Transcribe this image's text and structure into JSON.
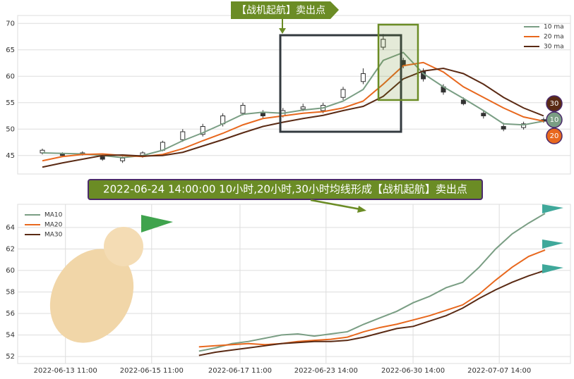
{
  "chart_data": [
    {
      "type": "candlestick",
      "annotation": "【战机起航】卖出点",
      "ylim": [
        41.5,
        71.5
      ],
      "yticks": [
        45,
        50,
        55,
        60,
        65,
        70
      ],
      "grid": true,
      "legend": "upper right",
      "candles": {
        "open": [
          45.5,
          45.3,
          45.2,
          44.8,
          44.0,
          44.8,
          46.0,
          48.0,
          49.0,
          51.0,
          53.0,
          53.2,
          52.5,
          53.8,
          53.5,
          56.0,
          59.0,
          65.5,
          63.0,
          61.0,
          58.0,
          55.5,
          53.0,
          50.5,
          50.3,
          51.8
        ],
        "close": [
          46.0,
          45.0,
          45.5,
          44.3,
          44.5,
          45.5,
          47.5,
          49.5,
          50.5,
          52.5,
          54.5,
          52.5,
          53.5,
          54.2,
          54.5,
          57.5,
          60.5,
          67.0,
          62.0,
          59.5,
          57.0,
          54.8,
          52.5,
          50.0,
          51.0,
          51.5
        ],
        "high": [
          46.3,
          45.6,
          45.8,
          45.0,
          44.8,
          45.8,
          47.8,
          50.0,
          51.0,
          53.0,
          55.0,
          53.6,
          54.0,
          54.8,
          55.0,
          58.0,
          61.5,
          68.0,
          63.5,
          61.5,
          58.5,
          56.0,
          53.5,
          51.2,
          51.4,
          52.2
        ],
        "low": [
          45.2,
          44.8,
          45.0,
          44.0,
          43.6,
          44.6,
          45.8,
          47.6,
          48.6,
          50.5,
          52.6,
          52.0,
          52.2,
          53.4,
          53.0,
          55.5,
          58.5,
          65.0,
          61.5,
          59.0,
          56.5,
          54.5,
          52.0,
          49.6,
          49.9,
          51.2
        ]
      },
      "series": [
        {
          "name": "10 ma",
          "badge": "10",
          "color": "#7a9e84",
          "values": [
            45.5,
            45.4,
            45.3,
            45.0,
            44.6,
            45.0,
            46.0,
            47.8,
            49.3,
            51.0,
            52.8,
            53.2,
            53.0,
            53.6,
            54.0,
            55.3,
            57.5,
            63.0,
            64.5,
            60.5,
            58.0,
            55.8,
            53.5,
            51.0,
            50.8,
            51.5
          ]
        },
        {
          "name": "20 ma",
          "badge": "20",
          "color": "#e8681e",
          "values": [
            44.0,
            44.8,
            45.2,
            45.3,
            45.0,
            44.8,
            45.2,
            46.3,
            47.8,
            49.2,
            50.8,
            52.0,
            52.5,
            53.0,
            53.3,
            54.0,
            55.3,
            58.5,
            62.0,
            62.6,
            60.8,
            58.0,
            56.0,
            54.0,
            52.3,
            51.5
          ]
        },
        {
          "name": "30 ma",
          "badge": "30",
          "color": "#5a2a14",
          "values": [
            42.8,
            43.6,
            44.3,
            45.0,
            45.1,
            44.9,
            45.0,
            45.6,
            46.8,
            48.0,
            49.3,
            50.5,
            51.3,
            52.0,
            52.6,
            53.5,
            54.3,
            56.2,
            59.5,
            61.0,
            61.5,
            60.5,
            58.5,
            56.0,
            54.0,
            52.5
          ]
        }
      ]
    },
    {
      "type": "line",
      "annotation": "2022-06-24 14:00:00 10小时,20小时,30小时均线形成【战机起航】卖出点",
      "xlim": [
        -11.0,
        22.54
      ],
      "xticks": [
        {
          "value": -8.1,
          "label": "2022-06-13 11:00"
        },
        {
          "value": -2.87,
          "label": "2022-06-15 11:00"
        },
        {
          "value": 2.49,
          "label": "2022-06-17 11:00"
        },
        {
          "value": 7.71,
          "label": "2022-06-23 14:00"
        },
        {
          "value": 12.99,
          "label": "2022-06-30 14:00"
        },
        {
          "value": 18.22,
          "label": "2022-07-07 14:00"
        }
      ],
      "ylim": [
        51.35,
        66.15
      ],
      "yticks": [
        52,
        54,
        56,
        58,
        60,
        62,
        64
      ],
      "grid": true,
      "legend": "upper left",
      "series": [
        {
          "name": "MA10",
          "color": "#7a9e84",
          "values": [
            52.5,
            52.8,
            53.2,
            53.4,
            53.7,
            54.0,
            54.1,
            53.9,
            54.1,
            54.3,
            55.0,
            55.6,
            56.2,
            57.0,
            57.6,
            58.4,
            58.9,
            60.3,
            62.0,
            63.4,
            64.4,
            65.3
          ]
        },
        {
          "name": "MA20",
          "color": "#e8681e",
          "values": [
            52.9,
            53.0,
            53.1,
            53.2,
            53.1,
            53.2,
            53.4,
            53.5,
            53.6,
            53.8,
            54.3,
            54.7,
            55.0,
            55.4,
            55.8,
            56.3,
            56.8,
            57.8,
            59.1,
            60.3,
            61.3,
            61.9
          ]
        },
        {
          "name": "MA30",
          "color": "#5a2a14",
          "values": [
            52.1,
            52.4,
            52.6,
            52.8,
            53.0,
            53.2,
            53.3,
            53.4,
            53.4,
            53.5,
            53.8,
            54.2,
            54.6,
            54.8,
            55.3,
            55.8,
            56.5,
            57.4,
            58.2,
            58.9,
            59.5,
            60.0
          ]
        }
      ]
    }
  ]
}
